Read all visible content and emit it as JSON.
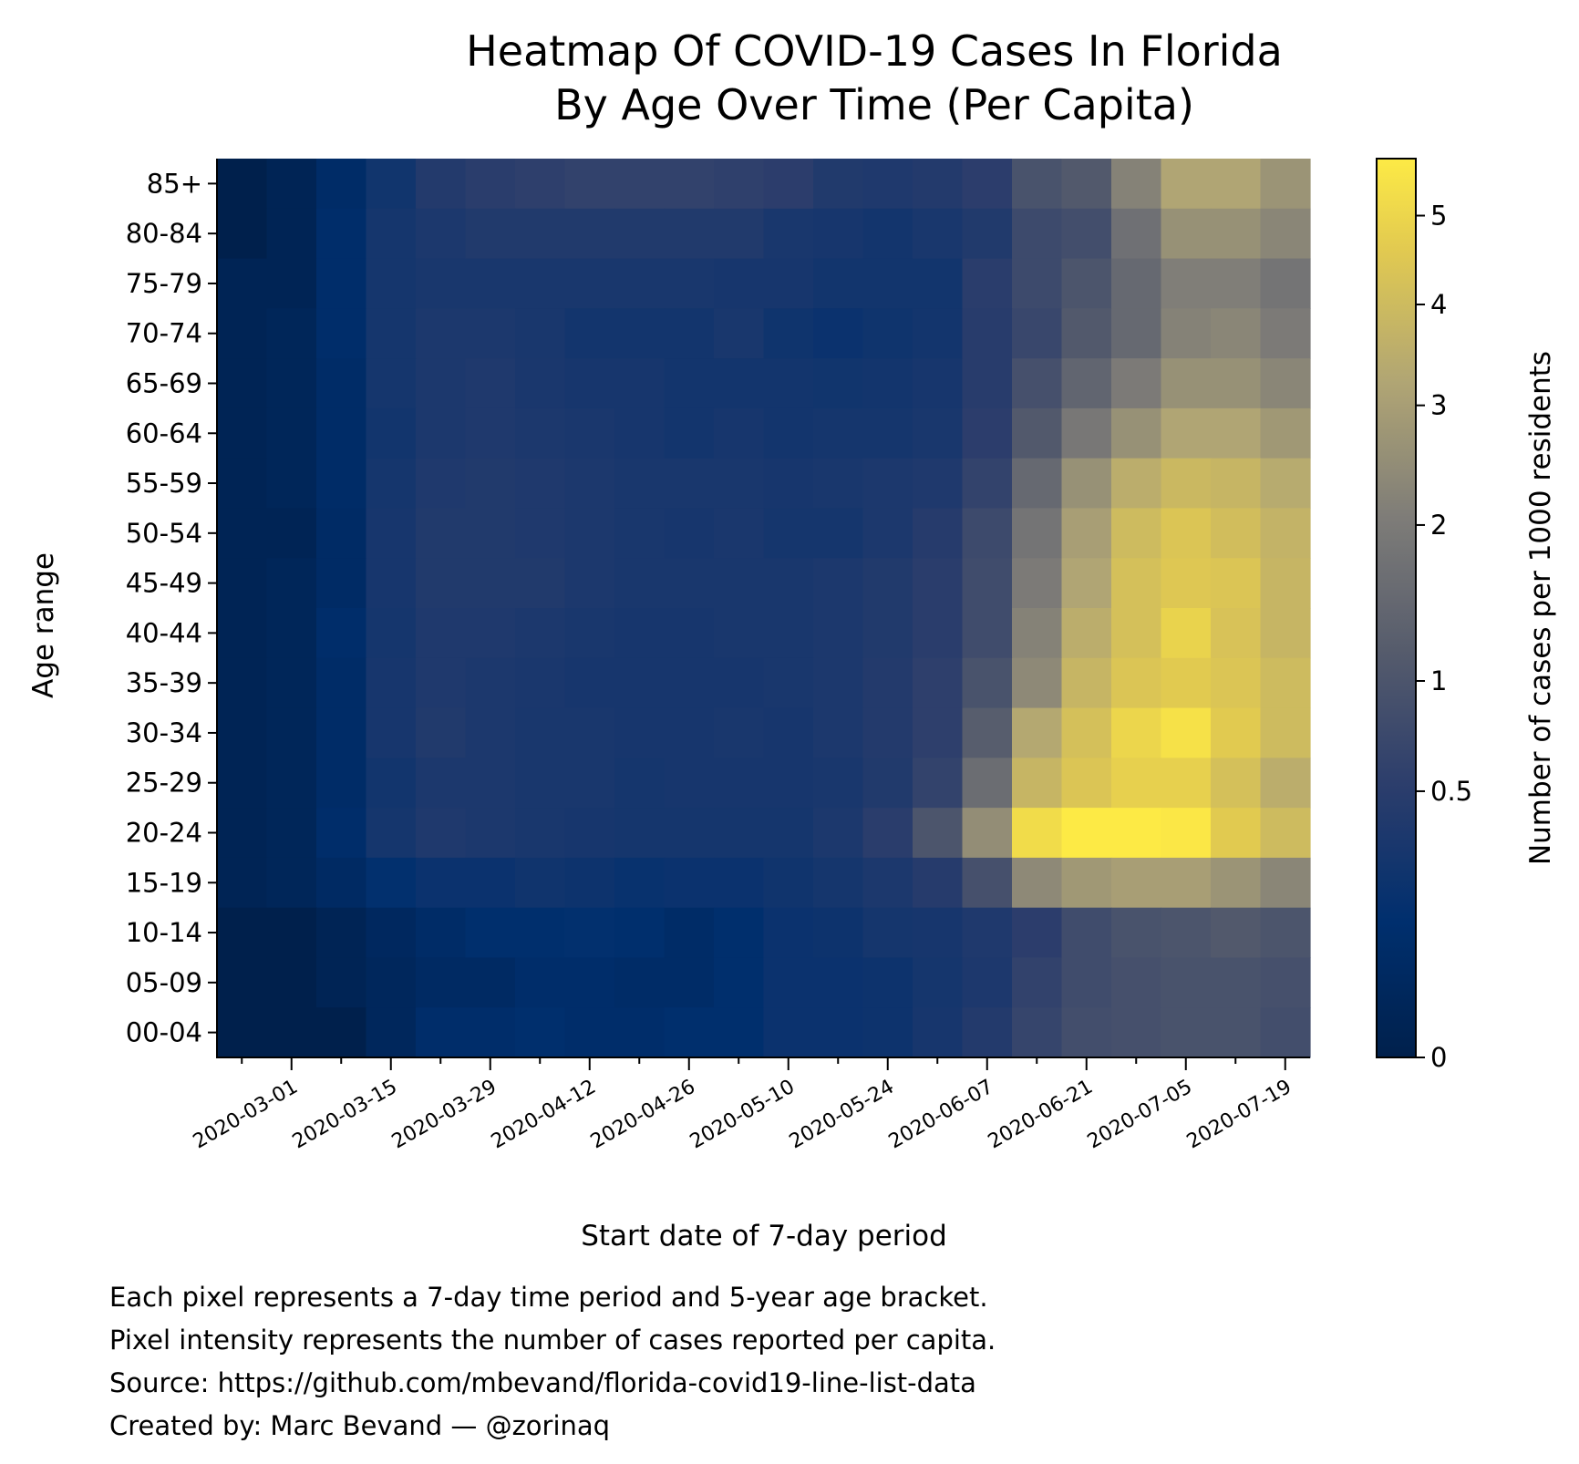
{
  "chart_data": {
    "type": "heatmap",
    "title": [
      "Heatmap Of COVID-19 Cases In Florida",
      "By Age Over Time (Per Capita)"
    ],
    "xlabel": "Start date of 7-day period",
    "ylabel": "Age range",
    "colorbar_label": "Number of cases per 1000 residents",
    "colormap": "cividis",
    "colorbar_scale": "power",
    "colorbar_ticks": [
      0,
      0.5,
      1,
      2,
      3,
      4,
      5
    ],
    "colorbar_tick_labels": [
      "0",
      "0.5",
      "1",
      "2",
      "3",
      "4",
      "5"
    ],
    "vmin": 0,
    "vmax": 5.7,
    "x": [
      "2020-02-23",
      "2020-03-01",
      "2020-03-08",
      "2020-03-15",
      "2020-03-22",
      "2020-03-29",
      "2020-04-05",
      "2020-04-12",
      "2020-04-19",
      "2020-04-26",
      "2020-05-03",
      "2020-05-10",
      "2020-05-17",
      "2020-05-24",
      "2020-05-31",
      "2020-06-07",
      "2020-06-14",
      "2020-06-21",
      "2020-06-28",
      "2020-07-05",
      "2020-07-12",
      "2020-07-19"
    ],
    "x_tick_labels": [
      "2020-03-01",
      "2020-03-15",
      "2020-03-29",
      "2020-04-12",
      "2020-04-26",
      "2020-05-10",
      "2020-05-24",
      "2020-06-07",
      "2020-06-21",
      "2020-07-05",
      "2020-07-19"
    ],
    "y": [
      "85+",
      "80-84",
      "75-79",
      "70-74",
      "65-69",
      "60-64",
      "55-59",
      "50-54",
      "45-49",
      "40-44",
      "35-39",
      "30-34",
      "25-29",
      "20-24",
      "15-19",
      "10-14",
      "05-09",
      "00-04"
    ],
    "values": [
      [
        0.0,
        0.01,
        0.08,
        0.25,
        0.42,
        0.5,
        0.55,
        0.6,
        0.6,
        0.6,
        0.56,
        0.52,
        0.4,
        0.38,
        0.42,
        0.52,
        0.95,
        1.1,
        2.2,
        3.2,
        3.2,
        2.7
      ],
      [
        0.0,
        0.01,
        0.1,
        0.28,
        0.35,
        0.4,
        0.4,
        0.4,
        0.4,
        0.4,
        0.4,
        0.32,
        0.3,
        0.27,
        0.32,
        0.4,
        0.75,
        0.85,
        1.7,
        2.6,
        2.6,
        2.3
      ],
      [
        0.01,
        0.01,
        0.1,
        0.28,
        0.32,
        0.32,
        0.32,
        0.32,
        0.32,
        0.32,
        0.3,
        0.3,
        0.26,
        0.26,
        0.26,
        0.5,
        0.75,
        1.0,
        1.5,
        2.1,
        2.1,
        1.8
      ],
      [
        0.01,
        0.02,
        0.1,
        0.28,
        0.35,
        0.35,
        0.32,
        0.27,
        0.27,
        0.27,
        0.32,
        0.23,
        0.2,
        0.23,
        0.27,
        0.48,
        0.7,
        1.1,
        1.5,
        2.2,
        2.3,
        2.0
      ],
      [
        0.01,
        0.02,
        0.08,
        0.28,
        0.35,
        0.38,
        0.33,
        0.3,
        0.3,
        0.27,
        0.27,
        0.27,
        0.25,
        0.27,
        0.3,
        0.48,
        0.9,
        1.4,
        2.0,
        2.6,
        2.6,
        2.3
      ],
      [
        0.01,
        0.02,
        0.08,
        0.26,
        0.35,
        0.38,
        0.35,
        0.33,
        0.3,
        0.27,
        0.3,
        0.27,
        0.28,
        0.28,
        0.32,
        0.52,
        1.1,
        1.9,
        2.6,
        3.2,
        3.2,
        2.8
      ],
      [
        0.01,
        0.02,
        0.08,
        0.28,
        0.38,
        0.4,
        0.38,
        0.35,
        0.32,
        0.32,
        0.32,
        0.3,
        0.32,
        0.35,
        0.38,
        0.62,
        1.5,
        2.6,
        3.5,
        3.9,
        3.8,
        3.4
      ],
      [
        0.01,
        0.01,
        0.07,
        0.3,
        0.4,
        0.4,
        0.38,
        0.35,
        0.32,
        0.3,
        0.33,
        0.28,
        0.28,
        0.35,
        0.45,
        0.75,
        1.8,
        3.0,
        4.0,
        4.4,
        4.1,
        3.7
      ],
      [
        0.01,
        0.02,
        0.07,
        0.3,
        0.4,
        0.4,
        0.4,
        0.35,
        0.32,
        0.32,
        0.32,
        0.32,
        0.35,
        0.4,
        0.5,
        0.8,
        2.0,
        3.2,
        4.2,
        4.5,
        4.4,
        3.8
      ],
      [
        0.01,
        0.02,
        0.1,
        0.28,
        0.38,
        0.38,
        0.35,
        0.32,
        0.3,
        0.3,
        0.32,
        0.32,
        0.35,
        0.4,
        0.5,
        0.8,
        2.2,
        3.5,
        4.2,
        4.9,
        4.3,
        3.8
      ],
      [
        0.01,
        0.02,
        0.08,
        0.3,
        0.38,
        0.35,
        0.33,
        0.3,
        0.3,
        0.3,
        0.3,
        0.32,
        0.35,
        0.42,
        0.55,
        0.95,
        2.4,
        3.8,
        4.4,
        4.6,
        4.4,
        4.0
      ],
      [
        0.01,
        0.02,
        0.08,
        0.3,
        0.4,
        0.35,
        0.32,
        0.32,
        0.3,
        0.3,
        0.32,
        0.3,
        0.35,
        0.42,
        0.55,
        1.2,
        3.3,
        4.2,
        5.0,
        5.4,
        4.6,
        4.0
      ],
      [
        0.01,
        0.02,
        0.08,
        0.26,
        0.35,
        0.35,
        0.32,
        0.32,
        0.28,
        0.3,
        0.3,
        0.3,
        0.32,
        0.4,
        0.62,
        1.6,
        3.8,
        4.4,
        4.8,
        4.8,
        4.2,
        3.5
      ],
      [
        0.01,
        0.02,
        0.1,
        0.28,
        0.38,
        0.35,
        0.32,
        0.3,
        0.28,
        0.28,
        0.28,
        0.28,
        0.35,
        0.5,
        1.0,
        2.5,
        5.2,
        5.7,
        5.7,
        5.6,
        4.6,
        4.0
      ],
      [
        0.01,
        0.02,
        0.06,
        0.14,
        0.2,
        0.2,
        0.24,
        0.22,
        0.18,
        0.2,
        0.2,
        0.24,
        0.28,
        0.35,
        0.45,
        0.9,
        2.4,
        2.8,
        3.0,
        3.0,
        2.7,
        2.3
      ],
      [
        0.0,
        0.0,
        0.01,
        0.04,
        0.08,
        0.12,
        0.12,
        0.14,
        0.12,
        0.08,
        0.12,
        0.2,
        0.22,
        0.28,
        0.3,
        0.38,
        0.52,
        0.8,
        0.95,
        1.0,
        1.1,
        1.0
      ],
      [
        0.0,
        0.0,
        0.01,
        0.03,
        0.06,
        0.06,
        0.1,
        0.1,
        0.08,
        0.08,
        0.12,
        0.2,
        0.2,
        0.22,
        0.28,
        0.36,
        0.6,
        0.8,
        0.9,
        0.95,
        0.95,
        0.9
      ],
      [
        0.0,
        0.0,
        0.0,
        0.03,
        0.1,
        0.1,
        0.12,
        0.1,
        0.1,
        0.12,
        0.12,
        0.2,
        0.2,
        0.22,
        0.3,
        0.42,
        0.65,
        0.85,
        0.9,
        0.95,
        0.95,
        0.85
      ]
    ]
  },
  "caption": [
    "Each pixel represents a 7-day time period and 5-year age bracket.",
    "Pixel intensity represents the number of cases reported per capita.",
    "Source: https://github.com/mbevand/florida-covid19-line-list-data",
    "Created by: Marc Bevand — @zorinaq"
  ]
}
